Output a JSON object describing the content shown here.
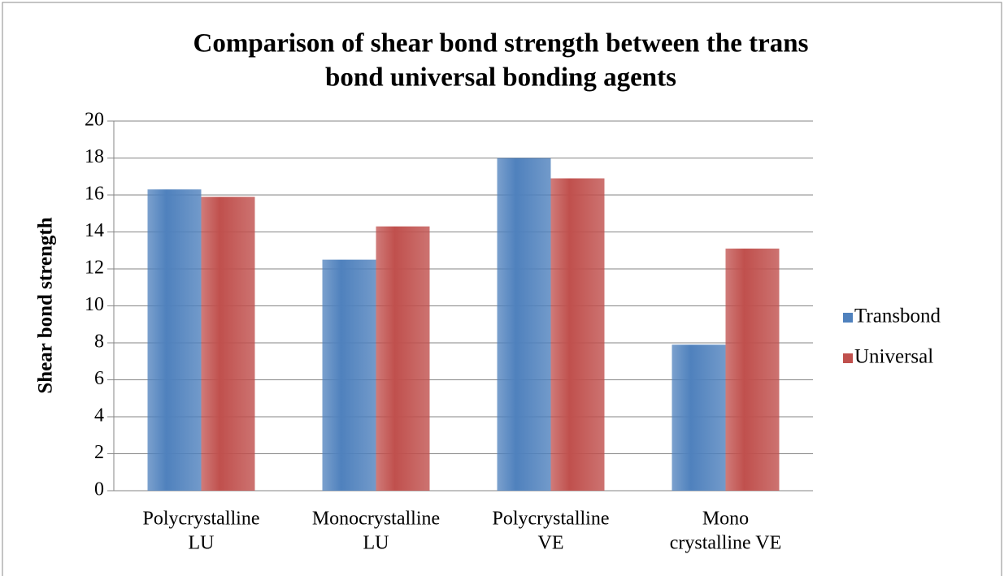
{
  "chart_data": {
    "type": "bar",
    "title": [
      "Comparison of shear bond strength between the trans",
      "bond universal bonding agents"
    ],
    "y_label": "Shear bond strength",
    "categories": [
      [
        "Polycrystalline",
        "LU"
      ],
      [
        "Monocrystalline",
        "LU"
      ],
      [
        "Polycrystalline",
        "VE"
      ],
      [
        "Mono",
        "crystalline VE"
      ]
    ],
    "series": [
      {
        "name": "Transbond",
        "color": "#4f81bd",
        "values": [
          16.3,
          12.5,
          18,
          7.9
        ]
      },
      {
        "name": "Universal",
        "color": "#c0504d",
        "values": [
          15.9,
          14.3,
          16.9,
          13.1
        ]
      }
    ],
    "ylim": [
      0,
      20
    ],
    "yticks": [
      0,
      2,
      4,
      6,
      8,
      10,
      12,
      14,
      16,
      18,
      20
    ],
    "grid": true,
    "legend": "right"
  }
}
